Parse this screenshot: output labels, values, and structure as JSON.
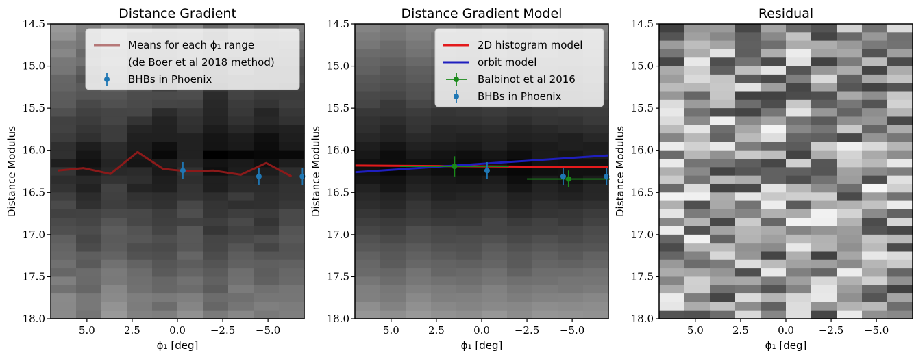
{
  "chart_data": [
    {
      "type": "heatmap",
      "title": "Distance Gradient",
      "xlabel": "ϕ₁ [deg]",
      "ylabel": "Distance Modulus",
      "xlim": [
        7.0,
        -7.0
      ],
      "ylim": [
        18.0,
        14.5
      ],
      "xticks": [
        "5.0",
        "2.5",
        "0.0",
        "−2.5",
        "−5.0"
      ],
      "yticks": [
        "14.5",
        "15.0",
        "15.5",
        "16.0",
        "16.5",
        "17.0",
        "17.5",
        "18.0"
      ],
      "legend_position": "upper right",
      "colormap": "gray",
      "series": [
        {
          "name": "Means for each ϕ₁ range\n(de Boer et al 2018 method)",
          "kind": "line",
          "color": "#8b1a1a",
          "x": [
            6.6,
            5.2,
            3.7,
            2.2,
            0.8,
            -0.6,
            -2.0,
            -3.5,
            -4.9,
            -6.3
          ],
          "y": [
            16.24,
            16.21,
            16.28,
            16.02,
            16.22,
            16.25,
            16.24,
            16.29,
            16.15,
            16.31
          ]
        },
        {
          "name": "BHBs in Phoenix",
          "kind": "errorbar",
          "color": "#1f77b4",
          "x": [
            -0.3,
            -4.5,
            -6.9
          ],
          "y": [
            16.24,
            16.31,
            16.31
          ],
          "yerr": [
            0.1,
            0.1,
            0.1
          ]
        }
      ]
    },
    {
      "type": "heatmap",
      "title": "Distance Gradient Model",
      "xlabel": "ϕ₁ [deg]",
      "ylabel": "Distance Modulus",
      "xlim": [
        7.0,
        -7.0
      ],
      "ylim": [
        18.0,
        14.5
      ],
      "xticks": [
        "5.0",
        "2.5",
        "0.0",
        "−2.5",
        "−5.0"
      ],
      "yticks": [
        "14.5",
        "15.0",
        "15.5",
        "16.0",
        "16.5",
        "17.0",
        "17.5",
        "18.0"
      ],
      "legend_position": "upper right",
      "colormap": "gray",
      "series": [
        {
          "name": "2D histogram model",
          "kind": "line",
          "color": "#e31a1c",
          "x": [
            7.0,
            -7.0
          ],
          "y": [
            16.18,
            16.2
          ]
        },
        {
          "name": "orbit model",
          "kind": "line",
          "color": "#1f1fbf",
          "x": [
            7.0,
            -7.0
          ],
          "y": [
            16.26,
            16.06
          ]
        },
        {
          "name": "Balbinot et al 2016",
          "kind": "errorbar",
          "color": "#1a8a1a",
          "x": [
            1.5,
            -4.8
          ],
          "y": [
            16.19,
            16.34
          ],
          "yerr": [
            0.12,
            0.1
          ],
          "xerr": [
            3.0,
            2.3
          ]
        },
        {
          "name": "BHBs in Phoenix",
          "kind": "errorbar",
          "color": "#1f77b4",
          "x": [
            -0.3,
            -4.5,
            -6.9
          ],
          "y": [
            16.24,
            16.31,
            16.31
          ],
          "yerr": [
            0.1,
            0.1,
            0.1
          ]
        }
      ]
    },
    {
      "type": "heatmap",
      "title": "Residual",
      "xlabel": "ϕ₁ [deg]",
      "ylabel": "Distance Modulus",
      "xlim": [
        7.0,
        -7.0
      ],
      "ylim": [
        18.0,
        14.5
      ],
      "xticks": [
        "5.0",
        "2.5",
        "0.0",
        "−2.5",
        "−5.0"
      ],
      "yticks": [
        "14.5",
        "15.0",
        "15.5",
        "16.0",
        "16.5",
        "17.0",
        "17.5",
        "18.0"
      ],
      "colormap": "gray"
    }
  ]
}
